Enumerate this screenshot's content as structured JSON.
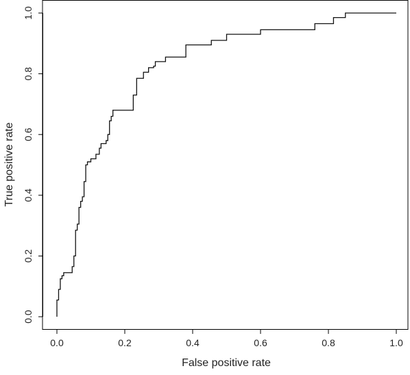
{
  "chart_data": {
    "type": "line",
    "title": "",
    "xlabel": "False positive rate",
    "ylabel": "True positive rate",
    "xlim": [
      0,
      1
    ],
    "ylim": [
      0,
      1
    ],
    "xticks": [
      "0.0",
      "0.2",
      "0.4",
      "0.6",
      "0.8",
      "1.0"
    ],
    "yticks": [
      "0.0",
      "0.2",
      "0.4",
      "0.6",
      "0.8",
      "1.0"
    ],
    "grid": false,
    "series": [
      {
        "name": "",
        "x": [
          0.0,
          0.0,
          0.005,
          0.005,
          0.01,
          0.01,
          0.015,
          0.015,
          0.02,
          0.02,
          0.045,
          0.045,
          0.05,
          0.05,
          0.055,
          0.055,
          0.06,
          0.06,
          0.065,
          0.065,
          0.07,
          0.07,
          0.075,
          0.075,
          0.08,
          0.08,
          0.085,
          0.085,
          0.09,
          0.09,
          0.1,
          0.1,
          0.115,
          0.115,
          0.125,
          0.125,
          0.13,
          0.13,
          0.145,
          0.145,
          0.15,
          0.15,
          0.155,
          0.155,
          0.16,
          0.16,
          0.165,
          0.165,
          0.17,
          0.17,
          0.225,
          0.225,
          0.235,
          0.235,
          0.255,
          0.255,
          0.27,
          0.27,
          0.285,
          0.285,
          0.29,
          0.29,
          0.32,
          0.32,
          0.38,
          0.38,
          0.455,
          0.455,
          0.5,
          0.5,
          0.6,
          0.6,
          0.74,
          0.74,
          0.76,
          0.76,
          0.815,
          0.815,
          0.85,
          0.85,
          0.91,
          0.91,
          1.0
        ],
        "y": [
          0.0,
          0.055,
          0.055,
          0.09,
          0.09,
          0.125,
          0.125,
          0.135,
          0.135,
          0.145,
          0.145,
          0.165,
          0.165,
          0.2,
          0.2,
          0.285,
          0.285,
          0.305,
          0.305,
          0.36,
          0.36,
          0.38,
          0.38,
          0.395,
          0.395,
          0.445,
          0.445,
          0.5,
          0.5,
          0.51,
          0.51,
          0.52,
          0.52,
          0.535,
          0.535,
          0.555,
          0.555,
          0.57,
          0.57,
          0.58,
          0.58,
          0.6,
          0.6,
          0.645,
          0.645,
          0.66,
          0.66,
          0.68,
          0.68,
          0.68,
          0.68,
          0.73,
          0.73,
          0.785,
          0.785,
          0.805,
          0.805,
          0.82,
          0.82,
          0.825,
          0.825,
          0.84,
          0.84,
          0.855,
          0.855,
          0.895,
          0.895,
          0.91,
          0.91,
          0.93,
          0.93,
          0.945,
          0.945,
          0.945,
          0.945,
          0.965,
          0.965,
          0.985,
          0.985,
          1.0,
          1.0,
          1.0,
          1.0
        ]
      }
    ]
  }
}
